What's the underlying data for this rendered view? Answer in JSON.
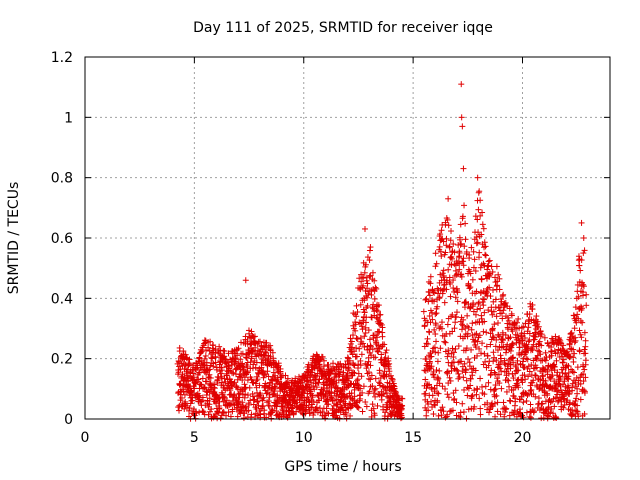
{
  "chart_data": {
    "type": "scatter",
    "title": "Day 111 of 2025, SRMTID for receiver iqqe",
    "xlabel": "GPS time / hours",
    "ylabel": "SRMTID / TECUs",
    "xlim": [
      0,
      24
    ],
    "ylim": [
      0,
      1.2
    ],
    "xticks": [
      0,
      5,
      10,
      15,
      20
    ],
    "xtick_labels": [
      "0",
      "5",
      "10",
      "15",
      "20"
    ],
    "yticks": [
      0,
      0.2,
      0.4,
      0.6,
      0.8,
      1,
      1.2
    ],
    "ytick_labels": [
      "0",
      "0.2",
      "0.4",
      "0.6",
      "0.8",
      "1",
      "1.2"
    ],
    "grid": true,
    "marker": "+",
    "color": "#e00000",
    "envelope": [
      [
        4.2,
        0.25
      ],
      [
        4.6,
        0.22
      ],
      [
        5.0,
        0.18
      ],
      [
        5.5,
        0.27
      ],
      [
        6.0,
        0.25
      ],
      [
        6.5,
        0.22
      ],
      [
        7.0,
        0.24
      ],
      [
        7.5,
        0.3
      ],
      [
        8.0,
        0.26
      ],
      [
        8.5,
        0.25
      ],
      [
        9.0,
        0.16
      ],
      [
        9.5,
        0.13
      ],
      [
        10.0,
        0.15
      ],
      [
        10.5,
        0.22
      ],
      [
        11.0,
        0.2
      ],
      [
        11.5,
        0.18
      ],
      [
        12.0,
        0.2
      ],
      [
        12.5,
        0.48
      ],
      [
        12.8,
        0.55
      ],
      [
        13.0,
        0.58
      ],
      [
        13.3,
        0.45
      ],
      [
        13.6,
        0.3
      ],
      [
        14.0,
        0.15
      ],
      [
        14.4,
        0.05
      ],
      [
        15.6,
        0.42
      ],
      [
        16.0,
        0.55
      ],
      [
        16.5,
        0.7
      ],
      [
        17.0,
        0.55
      ],
      [
        17.3,
        0.72
      ],
      [
        17.6,
        0.55
      ],
      [
        18.0,
        0.78
      ],
      [
        18.4,
        0.55
      ],
      [
        18.8,
        0.52
      ],
      [
        19.2,
        0.4
      ],
      [
        19.6,
        0.35
      ],
      [
        20.0,
        0.32
      ],
      [
        20.4,
        0.4
      ],
      [
        20.8,
        0.3
      ],
      [
        21.2,
        0.25
      ],
      [
        21.6,
        0.3
      ],
      [
        22.0,
        0.22
      ],
      [
        22.3,
        0.32
      ],
      [
        22.6,
        0.55
      ],
      [
        22.9,
        0.6
      ]
    ],
    "highlights": [
      {
        "x": 7.35,
        "y": 0.46
      },
      {
        "x": 12.8,
        "y": 0.63
      },
      {
        "x": 13.05,
        "y": 0.57
      },
      {
        "x": 16.6,
        "y": 0.73
      },
      {
        "x": 17.2,
        "y": 1.11
      },
      {
        "x": 17.22,
        "y": 1.0
      },
      {
        "x": 17.25,
        "y": 0.97
      },
      {
        "x": 17.3,
        "y": 0.83
      },
      {
        "x": 17.95,
        "y": 0.8
      },
      {
        "x": 18.0,
        "y": 0.75
      },
      {
        "x": 22.7,
        "y": 0.65
      },
      {
        "x": 22.8,
        "y": 0.6
      }
    ],
    "gaps": [
      [
        0,
        4.2
      ],
      [
        14.5,
        15.5
      ],
      [
        23.0,
        24
      ]
    ]
  }
}
